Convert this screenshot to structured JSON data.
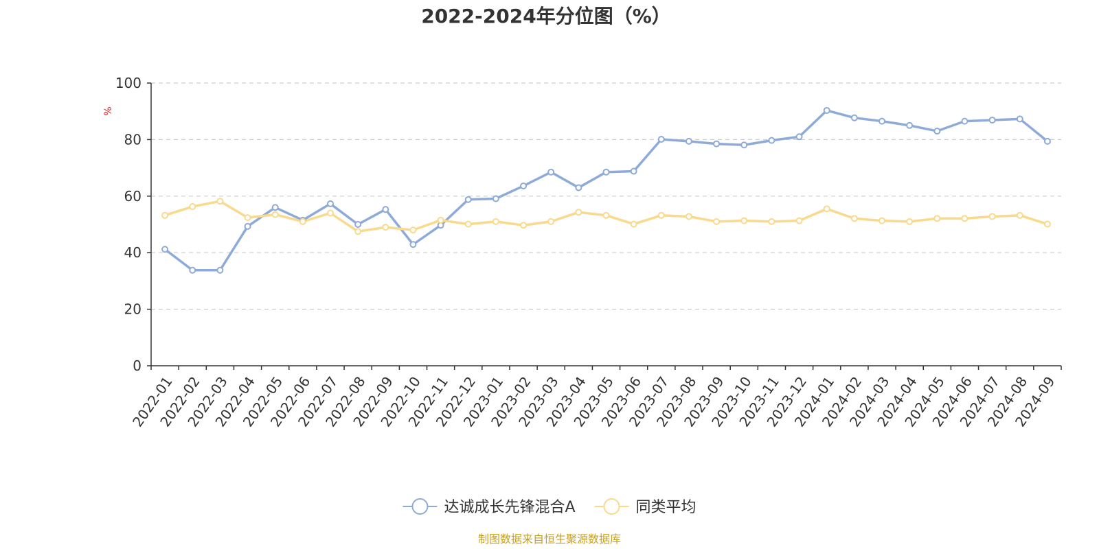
{
  "chart_data": {
    "type": "line",
    "title": "2022-2024年分位图（%）",
    "ylabel": "%",
    "ylim": [
      0,
      100
    ],
    "yticks": [
      0,
      20,
      40,
      60,
      80,
      100
    ],
    "grid": true,
    "legend_position": "bottom",
    "categories": [
      "2022-01",
      "2022-02",
      "2022-03",
      "2022-04",
      "2022-05",
      "2022-06",
      "2022-07",
      "2022-08",
      "2022-09",
      "2022-10",
      "2022-11",
      "2022-12",
      "2023-01",
      "2023-02",
      "2023-03",
      "2023-04",
      "2023-05",
      "2023-06",
      "2023-07",
      "2023-08",
      "2023-09",
      "2023-10",
      "2023-11",
      "2023-12",
      "2024-01",
      "2024-02",
      "2024-03",
      "2024-04",
      "2024-05",
      "2024-06",
      "2024-07",
      "2024-08",
      "2024-09"
    ],
    "series": [
      {
        "name": "达诚成长先锋混合A",
        "color": "#8eaad8",
        "values": [
          41.2,
          33.8,
          33.8,
          49.3,
          56.0,
          51.5,
          57.3,
          50.0,
          55.3,
          42.9,
          49.7,
          58.8,
          59.1,
          63.6,
          68.5,
          63.0,
          68.5,
          68.8,
          80.1,
          79.4,
          78.5,
          78.1,
          79.7,
          81.0,
          90.3,
          87.7,
          86.5,
          85.0,
          83.0,
          86.5,
          86.9,
          87.3,
          79.4
        ]
      },
      {
        "name": "同类平均",
        "color": "#f9d98c",
        "values": [
          53.2,
          56.3,
          58.2,
          52.4,
          53.5,
          51.0,
          54.0,
          47.5,
          49.0,
          48.0,
          51.5,
          50.1,
          51.0,
          49.7,
          51.0,
          54.3,
          53.2,
          50.1,
          53.2,
          52.8,
          51.0,
          51.3,
          51.0,
          51.3,
          55.5,
          52.1,
          51.3,
          51.0,
          52.1,
          52.1,
          52.8,
          53.2,
          50.1
        ]
      }
    ]
  },
  "source": "制图数据来自恒生聚源数据库"
}
